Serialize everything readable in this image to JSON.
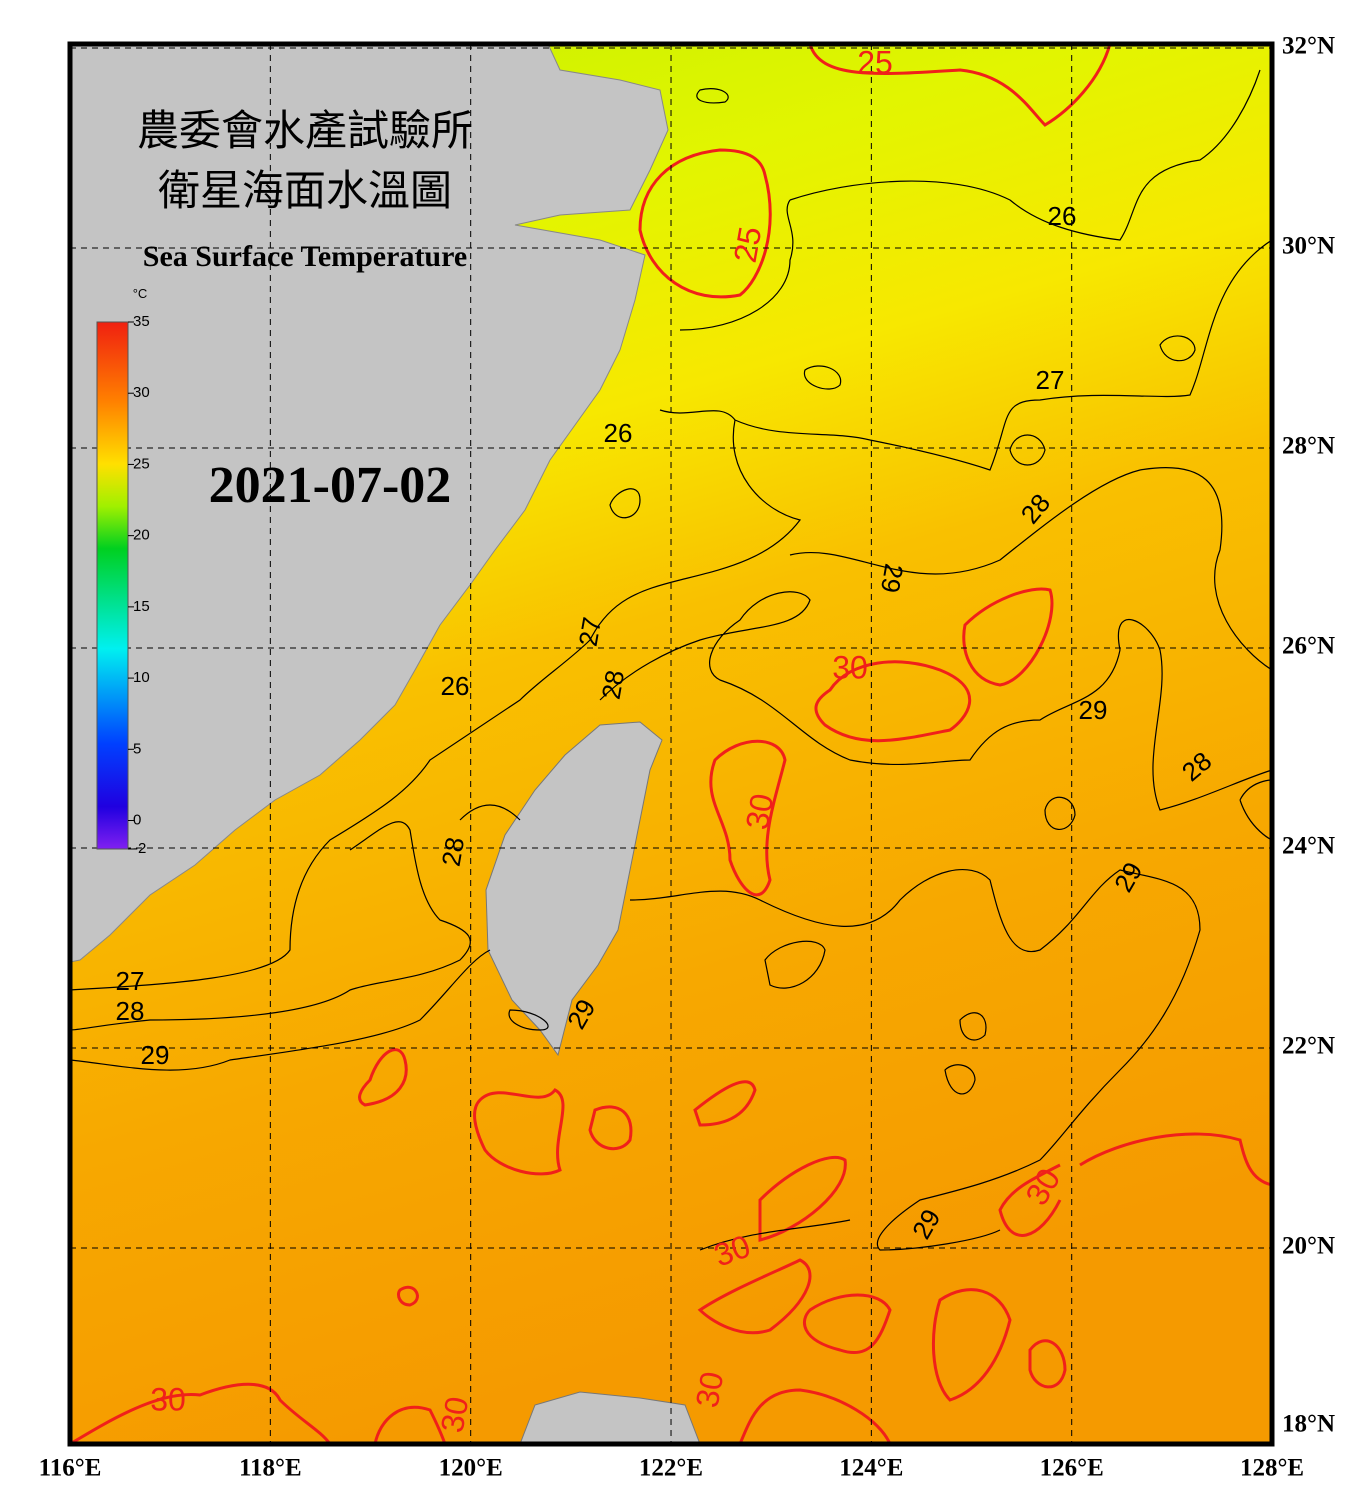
{
  "header": {
    "title_zh_1": "農委會水產試驗所",
    "title_zh_2": "衛星海面水溫圖",
    "title_en": "Sea Surface Temperature",
    "date": "2021-07-02"
  },
  "colorbar": {
    "unit": "°C",
    "range": [
      -2,
      35
    ],
    "ticks": [
      35,
      30,
      25,
      20,
      15,
      10,
      5,
      0,
      -2
    ]
  },
  "lat_labels": [
    {
      "value": 32,
      "label": "32°N"
    },
    {
      "value": 30,
      "label": "30°N"
    },
    {
      "value": 28,
      "label": "28°N"
    },
    {
      "value": 26,
      "label": "26°N"
    },
    {
      "value": 24,
      "label": "24°N"
    },
    {
      "value": 22,
      "label": "22°N"
    },
    {
      "value": 20,
      "label": "20°N"
    },
    {
      "value": 18,
      "label": "18°N"
    }
  ],
  "lon_labels": [
    {
      "value": 116,
      "label": "116°E"
    },
    {
      "value": 118,
      "label": "118°E"
    },
    {
      "value": 120,
      "label": "120°E"
    },
    {
      "value": 122,
      "label": "122°E"
    },
    {
      "value": 124,
      "label": "124°E"
    },
    {
      "value": 126,
      "label": "126°E"
    },
    {
      "value": 128,
      "label": "128°E"
    }
  ],
  "contour_labels": [
    25,
    25,
    26,
    27,
    26,
    28,
    29,
    30,
    27,
    28,
    26,
    29,
    28,
    30,
    28,
    29,
    27,
    28,
    29,
    29,
    30,
    29,
    30,
    30,
    30,
    30
  ]
}
